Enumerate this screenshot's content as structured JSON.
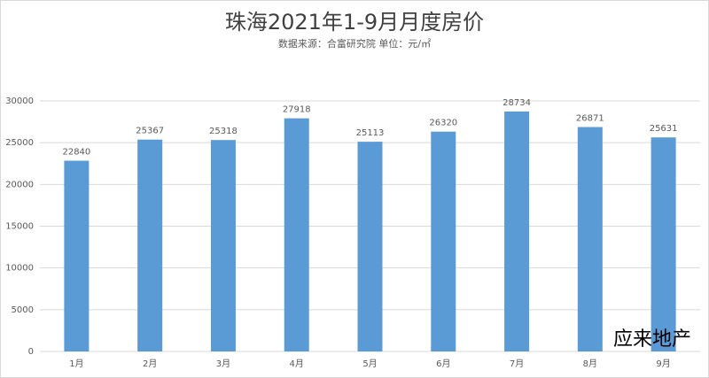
{
  "chart_data": {
    "type": "bar",
    "title": "珠海2021年1-9月月度房价",
    "subtitle": "数据来源：合富研究院 单位：元/㎡",
    "categories": [
      "1月",
      "2月",
      "3月",
      "4月",
      "5月",
      "6月",
      "7月",
      "8月",
      "9月"
    ],
    "values": [
      22840,
      25367,
      25318,
      27918,
      25113,
      26320,
      28734,
      26871,
      25631
    ],
    "color": "#5b9bd5",
    "ylim": [
      0,
      30000
    ],
    "yticks": [
      0,
      5000,
      10000,
      15000,
      20000,
      25000,
      30000
    ],
    "grid": true,
    "watermark": "应来地产"
  }
}
